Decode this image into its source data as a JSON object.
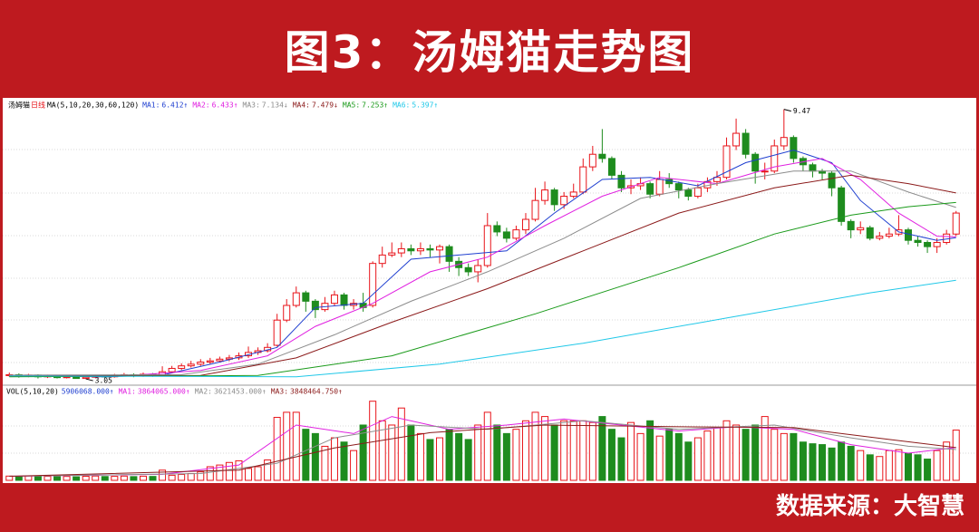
{
  "header": {
    "title": "图3：汤姆猫走势图"
  },
  "footer": {
    "source": "数据来源：大智慧"
  },
  "chart_data": {
    "type": "candlestick",
    "name": "汤姆猫",
    "period": "日线",
    "ma_label": "MA(5,10,20,30,60,120)",
    "ylim": [
      2.9,
      9.7
    ],
    "up_color": "#e8141a",
    "down_color": "#1e8c1e",
    "candles": {
      "open": [
        3.13,
        3.15,
        3.12,
        3.14,
        3.1,
        3.12,
        3.08,
        3.1,
        3.06,
        3.09,
        3.12,
        3.1,
        3.14,
        3.15,
        3.12,
        3.16,
        3.14,
        3.22,
        3.3,
        3.36,
        3.4,
        3.45,
        3.48,
        3.52,
        3.55,
        3.6,
        3.68,
        3.72,
        3.85,
        4.45,
        4.8,
        5.1,
        4.9,
        4.7,
        4.85,
        5.05,
        4.8,
        4.85,
        4.8,
        5.8,
        6.0,
        6.05,
        6.15,
        6.1,
        6.15,
        6.12,
        6.2,
        5.85,
        5.7,
        5.6,
        5.75,
        6.7,
        6.55,
        6.4,
        6.6,
        6.85,
        7.3,
        7.55,
        7.2,
        7.4,
        7.5,
        8.1,
        8.4,
        8.3,
        7.9,
        7.6,
        7.65,
        7.7,
        7.45,
        7.8,
        7.7,
        7.55,
        7.4,
        7.6,
        7.75,
        7.85,
        8.6,
        8.9,
        8.4,
        8.0,
        8.0,
        8.6,
        8.8,
        8.3,
        8.15,
        8.0,
        7.95,
        7.6,
        6.8,
        6.6,
        6.65,
        6.4,
        6.45,
        6.5,
        6.6,
        6.35,
        6.3,
        6.2,
        6.3,
        6.5
      ],
      "high": [
        3.2,
        3.18,
        3.17,
        3.16,
        3.15,
        3.14,
        3.13,
        3.12,
        3.12,
        3.15,
        3.14,
        3.17,
        3.19,
        3.18,
        3.2,
        3.19,
        3.35,
        3.36,
        3.42,
        3.48,
        3.52,
        3.55,
        3.58,
        3.62,
        3.68,
        3.82,
        3.8,
        3.9,
        4.6,
        4.95,
        5.25,
        5.15,
        4.95,
        5.0,
        5.15,
        5.1,
        4.95,
        5.1,
        5.85,
        6.2,
        6.3,
        6.3,
        6.25,
        6.3,
        6.25,
        6.25,
        6.25,
        5.95,
        5.8,
        5.9,
        7.0,
        6.8,
        6.65,
        6.7,
        7.0,
        7.6,
        7.75,
        7.6,
        7.5,
        7.7,
        8.3,
        8.6,
        9.0,
        8.35,
        8.0,
        7.8,
        7.85,
        7.75,
        8.0,
        7.95,
        7.75,
        7.6,
        7.7,
        7.85,
        8.0,
        8.8,
        9.25,
        9.0,
        8.45,
        8.2,
        8.75,
        9.47,
        8.85,
        8.35,
        8.2,
        8.05,
        8.0,
        7.65,
        6.85,
        6.8,
        6.7,
        6.55,
        6.65,
        6.95,
        6.65,
        6.45,
        6.35,
        6.4,
        6.6,
        7.05
      ],
      "low": [
        3.1,
        3.08,
        3.09,
        3.06,
        3.07,
        3.06,
        3.06,
        3.06,
        3.05,
        3.07,
        3.07,
        3.08,
        3.11,
        3.09,
        3.1,
        3.1,
        3.12,
        3.18,
        3.26,
        3.32,
        3.36,
        3.4,
        3.44,
        3.47,
        3.5,
        3.55,
        3.62,
        3.68,
        3.82,
        4.4,
        4.75,
        4.65,
        4.5,
        4.65,
        4.8,
        4.7,
        4.7,
        4.65,
        4.75,
        5.7,
        5.95,
        5.95,
        6.0,
        6.0,
        5.95,
        5.8,
        5.6,
        5.5,
        5.5,
        5.35,
        5.7,
        6.45,
        6.3,
        6.35,
        6.5,
        6.8,
        7.2,
        7.05,
        7.1,
        7.35,
        7.45,
        8.0,
        8.2,
        7.8,
        7.5,
        7.45,
        7.55,
        7.35,
        7.4,
        7.6,
        7.35,
        7.3,
        7.35,
        7.5,
        7.65,
        7.8,
        8.5,
        8.3,
        7.7,
        7.8,
        7.95,
        8.5,
        8.2,
        8.0,
        7.85,
        7.8,
        7.4,
        6.7,
        6.4,
        6.5,
        6.35,
        6.35,
        6.4,
        6.45,
        6.25,
        6.2,
        6.05,
        6.05,
        6.25,
        6.45
      ],
      "close": [
        3.15,
        3.12,
        3.14,
        3.1,
        3.12,
        3.08,
        3.1,
        3.06,
        3.09,
        3.12,
        3.1,
        3.14,
        3.15,
        3.12,
        3.16,
        3.14,
        3.22,
        3.3,
        3.36,
        3.4,
        3.45,
        3.48,
        3.52,
        3.55,
        3.6,
        3.68,
        3.72,
        3.8,
        4.45,
        4.8,
        5.1,
        4.9,
        4.7,
        4.85,
        5.05,
        4.8,
        4.85,
        4.75,
        5.8,
        6.0,
        6.05,
        6.15,
        6.1,
        6.15,
        6.12,
        6.2,
        5.85,
        5.7,
        5.6,
        5.75,
        6.7,
        6.55,
        6.4,
        6.6,
        6.85,
        7.3,
        7.55,
        7.2,
        7.4,
        7.5,
        8.1,
        8.4,
        8.3,
        7.9,
        7.6,
        7.65,
        7.7,
        7.45,
        7.8,
        7.7,
        7.55,
        7.4,
        7.6,
        7.75,
        7.85,
        8.6,
        8.9,
        8.4,
        8.0,
        8.0,
        8.6,
        8.8,
        8.3,
        8.15,
        8.0,
        7.95,
        7.6,
        6.8,
        6.6,
        6.65,
        6.4,
        6.45,
        6.5,
        6.6,
        6.35,
        6.3,
        6.2,
        6.3,
        6.5,
        7.0
      ]
    },
    "ma": [
      {
        "name": "MA1:",
        "value": 6.412,
        "trend": "↑",
        "color": "#1f3fd0",
        "x": [
          0,
          10,
          16,
          22,
          28,
          32,
          37,
          42,
          47,
          52,
          57,
          62,
          67,
          72,
          77,
          82,
          86,
          89,
          93,
          97,
          99
        ],
        "values": [
          3.12,
          3.1,
          3.14,
          3.45,
          3.8,
          4.75,
          4.85,
          5.9,
          6.0,
          6.1,
          7.0,
          7.8,
          7.85,
          7.65,
          8.2,
          8.5,
          8.2,
          7.3,
          6.55,
          6.35,
          6.412
        ]
      },
      {
        "name": "MA2:",
        "value": 6.433,
        "trend": "↑",
        "color": "#e020e0",
        "x": [
          0,
          12,
          20,
          27,
          32,
          38,
          44,
          50,
          56,
          62,
          68,
          74,
          80,
          85,
          89,
          93,
          97,
          99
        ],
        "values": [
          3.13,
          3.12,
          3.25,
          3.6,
          4.3,
          4.85,
          5.6,
          5.95,
          6.7,
          7.4,
          7.85,
          7.7,
          8.1,
          8.3,
          7.8,
          7.0,
          6.45,
          6.433
        ]
      },
      {
        "name": "MA3:",
        "value": 7.134,
        "trend": "↓",
        "color": "#8c8c8c",
        "x": [
          0,
          18,
          26,
          34,
          42,
          50,
          58,
          66,
          74,
          82,
          88,
          94,
          99
        ],
        "values": [
          3.14,
          3.15,
          3.4,
          4.1,
          4.9,
          5.6,
          6.4,
          7.35,
          7.7,
          8.0,
          8.0,
          7.5,
          7.134
        ]
      },
      {
        "name": "MA4:",
        "value": 7.479,
        "trend": "↓",
        "color": "#8b1a1a",
        "x": [
          0,
          20,
          30,
          40,
          50,
          60,
          70,
          80,
          88,
          94,
          99
        ],
        "values": [
          3.12,
          3.13,
          3.55,
          4.4,
          5.2,
          6.1,
          7.0,
          7.6,
          7.9,
          7.7,
          7.479
        ]
      },
      {
        "name": "MA5:",
        "value": 7.253,
        "trend": "↑",
        "color": "#1a9a1a",
        "x": [
          0,
          26,
          40,
          55,
          70,
          80,
          88,
          94,
          99
        ],
        "values": [
          3.1,
          3.13,
          3.6,
          4.6,
          5.7,
          6.5,
          6.95,
          7.15,
          7.253
        ]
      },
      {
        "name": "MA6:",
        "value": 5.397,
        "trend": "↑",
        "color": "#20c8e8",
        "x": [
          0,
          30,
          45,
          60,
          75,
          90,
          99
        ],
        "values": [
          3.12,
          3.1,
          3.4,
          3.9,
          4.5,
          5.1,
          5.397
        ]
      }
    ],
    "volume": {
      "label": "VOL(5,10,20)",
      "value": 5906068,
      "value_label": "5906068.000",
      "trend": "↑",
      "color": "#1f3fd0",
      "ylim": [
        0,
        9800000
      ],
      "values": [
        500000,
        480000,
        520000,
        450000,
        470000,
        430000,
        460000,
        420000,
        480000,
        510000,
        450000,
        470000,
        500000,
        440000,
        490000,
        460000,
        1200000,
        600000,
        700000,
        800000,
        1000000,
        1600000,
        1800000,
        2100000,
        2300000,
        1400000,
        1600000,
        2400000,
        7400000,
        8000000,
        8000000,
        6000000,
        5500000,
        4000000,
        5000000,
        4500000,
        3500000,
        6500000,
        9300000,
        7000000,
        6500000,
        8500000,
        6500000,
        5500000,
        4800000,
        5000000,
        6000000,
        5500000,
        4800000,
        6500000,
        8000000,
        6500000,
        5500000,
        6000000,
        7000000,
        8000000,
        7500000,
        6500000,
        7000000,
        7000000,
        7000000,
        6800000,
        7500000,
        6000000,
        5000000,
        6800000,
        5500000,
        7000000,
        5200000,
        6000000,
        5500000,
        4500000,
        5000000,
        5800000,
        6200000,
        7000000,
        6500000,
        6000000,
        6500000,
        7500000,
        6000000,
        5500000,
        5500000,
        4500000,
        4300000,
        4200000,
        3800000,
        4500000,
        4000000,
        3500000,
        3000000,
        2800000,
        3500000,
        3600000,
        3200000,
        3000000,
        2500000,
        3500000,
        4500000,
        5906068
      ],
      "ma": [
        {
          "name": "MA1:",
          "value": 3864065,
          "value_label": "3864065.000",
          "trend": "↑",
          "color": "#e020e0",
          "x": [
            0,
            16,
            24,
            30,
            36,
            40,
            46,
            52,
            58,
            64,
            70,
            76,
            82,
            88,
            94,
            99
          ],
          "values": [
            480000,
            700000,
            1800000,
            6500000,
            5500000,
            7500000,
            6000000,
            6500000,
            7200000,
            6500000,
            5800000,
            6300000,
            6000000,
            4200000,
            3200000,
            3864065
          ]
        },
        {
          "name": "MA2:",
          "value": 3621453,
          "value_label": "3621453.000",
          "trend": "↑",
          "color": "#8c8c8c",
          "x": [
            0,
            20,
            28,
            34,
            42,
            50,
            60,
            70,
            80,
            88,
            94,
            99
          ],
          "values": [
            480000,
            800000,
            2000000,
            5000000,
            6500000,
            6000000,
            7000000,
            6000000,
            6500000,
            5000000,
            4000000,
            3621453
          ]
        },
        {
          "name": "MA3:",
          "value": 3848464.75,
          "value_label": "3848464.750",
          "trend": "↑",
          "color": "#8b1a1a",
          "x": [
            0,
            24,
            34,
            44,
            56,
            70,
            82,
            92,
            99
          ],
          "values": [
            480000,
            1200000,
            3800000,
            5600000,
            6500000,
            6300000,
            6200000,
            4800000,
            3848464.75
          ]
        }
      ]
    }
  }
}
